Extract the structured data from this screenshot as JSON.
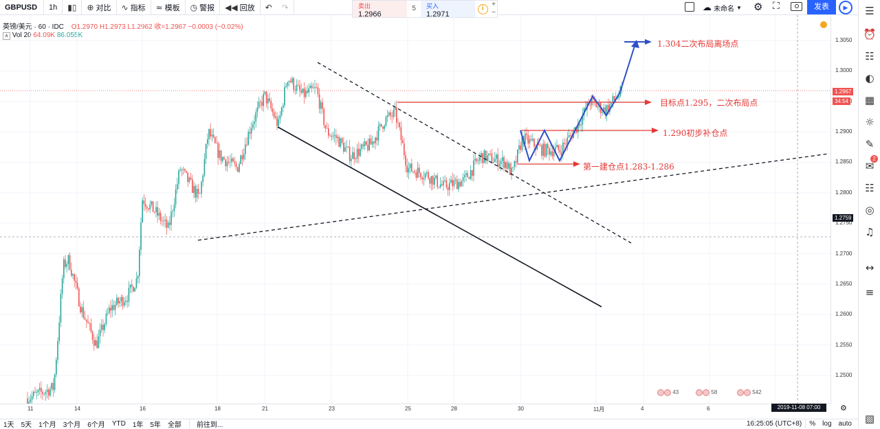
{
  "toolbar": {
    "symbol": "GBPUSD",
    "interval": "1h",
    "compare": "对比",
    "indicators": "指标",
    "templates": "模板",
    "alert": "警报",
    "replay": "回放"
  },
  "trade": {
    "sell_label": "卖出",
    "sell_price": "1.2966",
    "spread": "5",
    "buy_label": "买入",
    "buy_price": "1.2971"
  },
  "layout_name": "未命名",
  "publish": "发表",
  "legend": {
    "title": "英镑/美元 · 60 · IDC",
    "ohlc": "O1.2970  H1.2973  L1.2962  收=1.2967  −0.0003 (−0.02%)"
  },
  "volume": {
    "label": "Vol  20",
    "v1": "64.09K",
    "v2": "86.055K"
  },
  "price_axis": {
    "ticks": [
      "1.3050",
      "1.3000",
      "1.2950",
      "1.2900",
      "1.2850",
      "1.2800",
      "1.2750",
      "1.2700",
      "1.2650",
      "1.2600",
      "1.2550",
      "1.2500"
    ],
    "last_price": "1.2967",
    "countdown": "34:54",
    "crosshair_price": "1.2759"
  },
  "time_axis": {
    "ticks": [
      "11",
      "14",
      "16",
      "18",
      "21",
      "23",
      "25",
      "28",
      "30",
      "11月",
      "4",
      "6",
      "8"
    ],
    "crosshair_date": "2019-11-08  07:00"
  },
  "annotations": {
    "a1": "1.304二次布局离场点",
    "a2": "目标点1.295，二次布局点",
    "a3": "1.290初步补仓点",
    "a4": "第一建仓点1.283-1.286"
  },
  "events": [
    {
      "label": "4",
      "count": "3"
    },
    {
      "label": "5",
      "count": "8"
    },
    {
      "label": "5",
      "count": "42"
    }
  ],
  "bottom": {
    "ranges": [
      "1天",
      "5天",
      "1个月",
      "3个月",
      "6个月",
      "YTD",
      "1年",
      "5年",
      "全部"
    ],
    "goto": "前往到...",
    "clock": "16:25:05 (UTC+8)",
    "pct": "%",
    "log": "log",
    "auto": "auto"
  },
  "colors": {
    "up": "#26a69a",
    "down": "#ef5350",
    "accent": "#2962ff",
    "annotation": "#e53935"
  },
  "icons": {
    "compare": "plus-circle-icon",
    "indicators": "indicator-wave-icon",
    "alert": "alarm-clock-icon",
    "replay": "rewind-icon",
    "undo": "undo-icon",
    "redo": "redo-icon",
    "settings": "gear-icon",
    "fullscreen": "fullscreen-icon",
    "snapshot": "camera-icon"
  },
  "chart_data": {
    "type": "candlestick",
    "symbol": "GBPUSD",
    "interval": "60",
    "ylim": [
      1.2455,
      1.31
    ],
    "approx_close_path": [
      {
        "date": "11",
        "price": 1.247
      },
      {
        "date": "14",
        "price": 1.26
      },
      {
        "date": "16",
        "price": 1.28
      },
      {
        "date": "18",
        "price": 1.283
      },
      {
        "date": "21",
        "price": 1.299
      },
      {
        "date": "23",
        "price": 1.286
      },
      {
        "date": "25",
        "price": 1.285
      },
      {
        "date": "28",
        "price": 1.283
      },
      {
        "date": "30",
        "price": 1.288
      },
      {
        "date": "11月",
        "price": 1.2945
      },
      {
        "date": "11月",
        "price": 1.2967
      }
    ]
  }
}
